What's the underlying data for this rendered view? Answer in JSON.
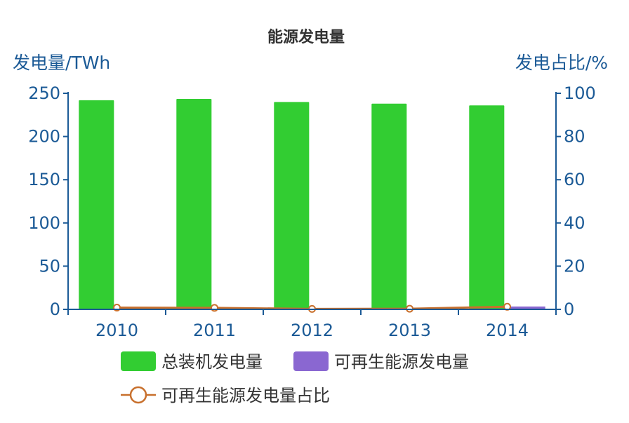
{
  "chart_data": {
    "type": "bar",
    "title": "能源发电量",
    "ylabel_left": "发电量/TWh",
    "ylabel_right": "发电占比/%",
    "categories": [
      "2010",
      "2011",
      "2012",
      "2013",
      "2014"
    ],
    "ylim_left": [
      0,
      250
    ],
    "yticks_left": [
      "0",
      "50",
      "100",
      "150",
      "200",
      "250"
    ],
    "ylim_right": [
      0,
      100
    ],
    "yticks_right": [
      "0",
      "20",
      "40",
      "60",
      "80",
      "100"
    ],
    "grid": false,
    "legend_position": "bottom",
    "series": [
      {
        "name": "总装机发电量",
        "type": "bar",
        "axis": "left",
        "color": "#32cd32",
        "values": [
          242,
          243.5,
          240,
          238,
          236
        ]
      },
      {
        "name": "可再生能源发电量",
        "type": "bar",
        "axis": "left",
        "color": "#8a67d1",
        "values": [
          0.4,
          0.6,
          0.3,
          1,
          3.3
        ]
      },
      {
        "name": "可再生能源发电量占比",
        "type": "line",
        "axis": "right",
        "color": "#c8702d",
        "values": [
          0.8,
          0.7,
          0.2,
          0.3,
          1.2
        ]
      }
    ]
  }
}
